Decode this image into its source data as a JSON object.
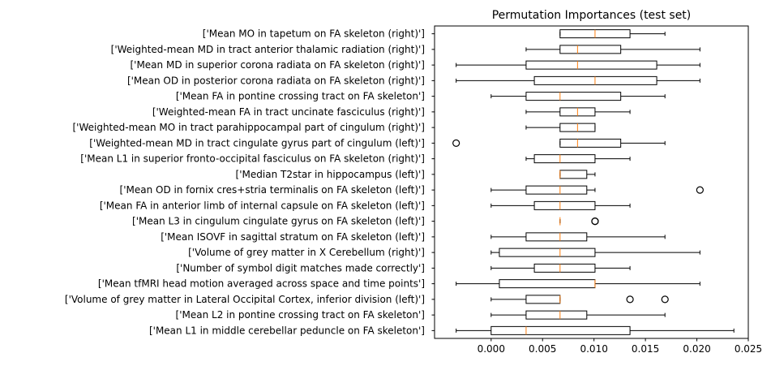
{
  "chart_data": {
    "type": "boxplot",
    "orientation": "horizontal",
    "title": "Permutation Importances (test set)",
    "xlim": [
      -0.0055,
      0.025
    ],
    "xticks": [
      0.0,
      0.005,
      0.01,
      0.015,
      0.02,
      0.025
    ],
    "xtick_labels": [
      "0.000",
      "0.005",
      "0.010",
      "0.015",
      "0.020",
      "0.025"
    ],
    "colors": {
      "box": "#000000",
      "median": "#ff7f0e",
      "background": "#ffffff"
    },
    "categories": [
      "['Mean MO in tapetum on FA skeleton (right)']",
      "['Weighted-mean MD in tract anterior thalamic radiation (right)']",
      "['Mean MD in superior corona radiata on FA skeleton (right)']",
      "['Mean OD in posterior corona radiata on FA skeleton (right)']",
      "['Mean FA in pontine crossing tract on FA skeleton']",
      "['Weighted-mean FA in tract uncinate fasciculus (right)']",
      "['Weighted-mean MO in tract parahippocampal part of cingulum (right)']",
      "['Weighted-mean MD in tract cingulate gyrus part of cingulum (left)']",
      "['Mean L1 in superior fronto-occipital fasciculus on FA skeleton (right)']",
      "['Median T2star in hippocampus (left)']",
      "['Mean OD in fornix cres+stria terminalis on FA skeleton (left)']",
      "['Mean FA in anterior limb of internal capsule on FA skeleton (left)']",
      "['Mean L3 in cingulum cingulate gyrus on FA skeleton (left)']",
      "['Mean ISOVF in sagittal stratum on FA skeleton (left)']",
      "['Volume of grey matter in X Cerebellum (right)']",
      "['Number of symbol digit matches made correctly']",
      "['Mean tfMRI head motion averaged across space and time points']",
      "['Volume of grey matter in Lateral Occipital Cortex, inferior division (left)']",
      "['Mean L2 in pontine crossing tract on FA skeleton']",
      "['Mean L1 in middle cerebellar peduncle on FA skeleton']"
    ],
    "boxes": [
      {
        "whislo": 0.0067,
        "q1": 0.0067,
        "med": 0.0101,
        "q3": 0.0135,
        "whishi": 0.0169,
        "fliers": []
      },
      {
        "whislo": 0.0034,
        "q1": 0.0067,
        "med": 0.0084,
        "q3": 0.0126,
        "whishi": 0.0203,
        "fliers": []
      },
      {
        "whislo": -0.0034,
        "q1": 0.0034,
        "med": 0.0084,
        "q3": 0.0161,
        "whishi": 0.0203,
        "fliers": []
      },
      {
        "whislo": -0.0034,
        "q1": 0.0042,
        "med": 0.0101,
        "q3": 0.0161,
        "whishi": 0.0203,
        "fliers": []
      },
      {
        "whislo": 0.0,
        "q1": 0.0034,
        "med": 0.0067,
        "q3": 0.0126,
        "whishi": 0.0169,
        "fliers": []
      },
      {
        "whislo": 0.0034,
        "q1": 0.0067,
        "med": 0.0084,
        "q3": 0.0101,
        "whishi": 0.0135,
        "fliers": []
      },
      {
        "whislo": 0.0034,
        "q1": 0.0067,
        "med": 0.0084,
        "q3": 0.0101,
        "whishi": 0.0101,
        "fliers": []
      },
      {
        "whislo": 0.0067,
        "q1": 0.0067,
        "med": 0.0084,
        "q3": 0.0126,
        "whishi": 0.0169,
        "fliers": [
          -0.0034
        ]
      },
      {
        "whislo": 0.0034,
        "q1": 0.0042,
        "med": 0.0067,
        "q3": 0.0101,
        "whishi": 0.0135,
        "fliers": []
      },
      {
        "whislo": 0.0067,
        "q1": 0.0067,
        "med": 0.0067,
        "q3": 0.0093,
        "whishi": 0.0101,
        "fliers": []
      },
      {
        "whislo": 0.0,
        "q1": 0.0034,
        "med": 0.0067,
        "q3": 0.0093,
        "whishi": 0.0101,
        "fliers": [
          0.0203
        ]
      },
      {
        "whislo": 0.0,
        "q1": 0.0042,
        "med": 0.0067,
        "q3": 0.0101,
        "whishi": 0.0135,
        "fliers": []
      },
      {
        "whislo": 0.0067,
        "q1": 0.0067,
        "med": 0.0067,
        "q3": 0.0067,
        "whishi": 0.0067,
        "fliers": [
          0.0101,
          0.0101
        ]
      },
      {
        "whislo": 0.0,
        "q1": 0.0034,
        "med": 0.0067,
        "q3": 0.0093,
        "whishi": 0.0169,
        "fliers": []
      },
      {
        "whislo": 0.0,
        "q1": 0.0008,
        "med": 0.0067,
        "q3": 0.0101,
        "whishi": 0.0203,
        "fliers": []
      },
      {
        "whislo": 0.0,
        "q1": 0.0042,
        "med": 0.0067,
        "q3": 0.0101,
        "whishi": 0.0135,
        "fliers": []
      },
      {
        "whislo": -0.0034,
        "q1": 0.0008,
        "med": 0.0101,
        "q3": 0.0101,
        "whishi": 0.0203,
        "fliers": []
      },
      {
        "whislo": 0.0,
        "q1": 0.0034,
        "med": 0.0067,
        "q3": 0.0067,
        "whishi": 0.0067,
        "fliers": [
          0.0135,
          0.0169
        ]
      },
      {
        "whislo": 0.0,
        "q1": 0.0034,
        "med": 0.0067,
        "q3": 0.0093,
        "whishi": 0.0169,
        "fliers": []
      },
      {
        "whislo": -0.0034,
        "q1": 0.0,
        "med": 0.0034,
        "q3": 0.0135,
        "whishi": 0.0236,
        "fliers": []
      }
    ]
  }
}
